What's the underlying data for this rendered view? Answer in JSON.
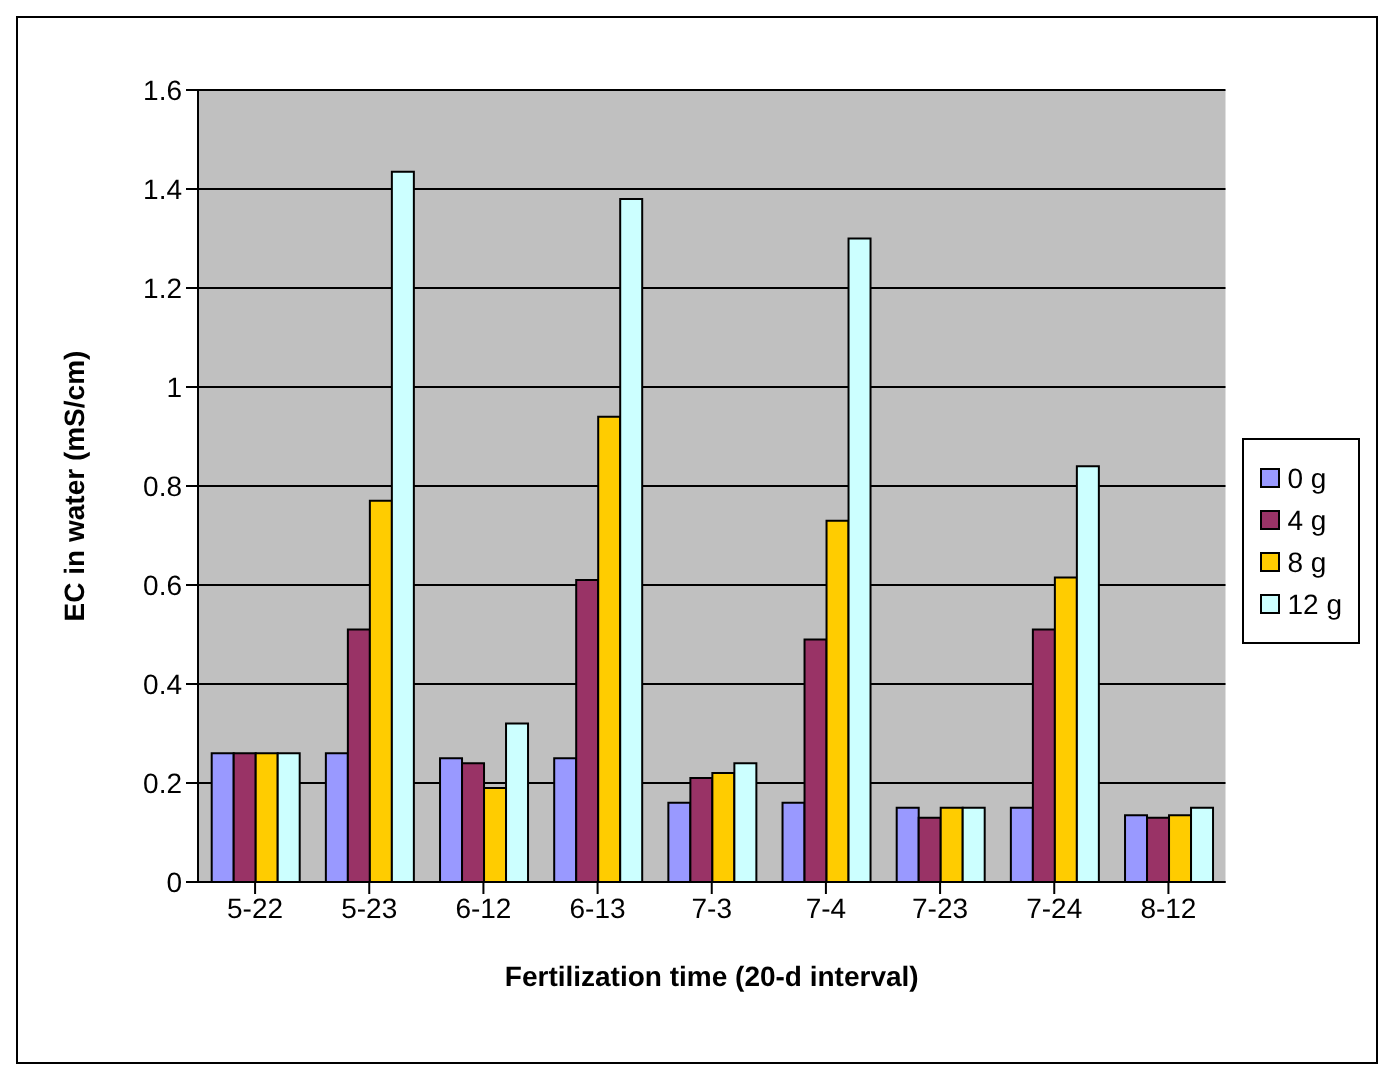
{
  "chart_data": {
    "type": "bar",
    "xlabel": "Fertilization time (20-d interval)",
    "ylabel": "EC in water (mS/cm)",
    "categories": [
      "5-22",
      "5-23",
      "6-12",
      "6-13",
      "7-3",
      "7-4",
      "7-23",
      "7-24",
      "8-12"
    ],
    "series": [
      {
        "name": "0 g",
        "color": "#9999ff",
        "values": [
          0.26,
          0.26,
          0.25,
          0.25,
          0.16,
          0.16,
          0.15,
          0.15,
          0.135
        ]
      },
      {
        "name": "4 g",
        "color": "#993366",
        "values": [
          0.26,
          0.51,
          0.24,
          0.61,
          0.21,
          0.49,
          0.13,
          0.51,
          0.13
        ]
      },
      {
        "name": "8 g",
        "color": "#ffcc00",
        "values": [
          0.26,
          0.77,
          0.19,
          0.94,
          0.22,
          0.73,
          0.15,
          0.615,
          0.135
        ]
      },
      {
        "name": "12 g",
        "color": "#ccffff",
        "values": [
          0.26,
          1.435,
          0.32,
          1.38,
          0.24,
          1.3,
          0.15,
          0.84,
          0.15
        ]
      }
    ],
    "ylim": [
      0,
      1.6
    ],
    "yticks": [
      0,
      0.2,
      0.4,
      0.6,
      0.8,
      1,
      1.2,
      1.4,
      1.6
    ],
    "grid": "y",
    "legend": "right"
  }
}
